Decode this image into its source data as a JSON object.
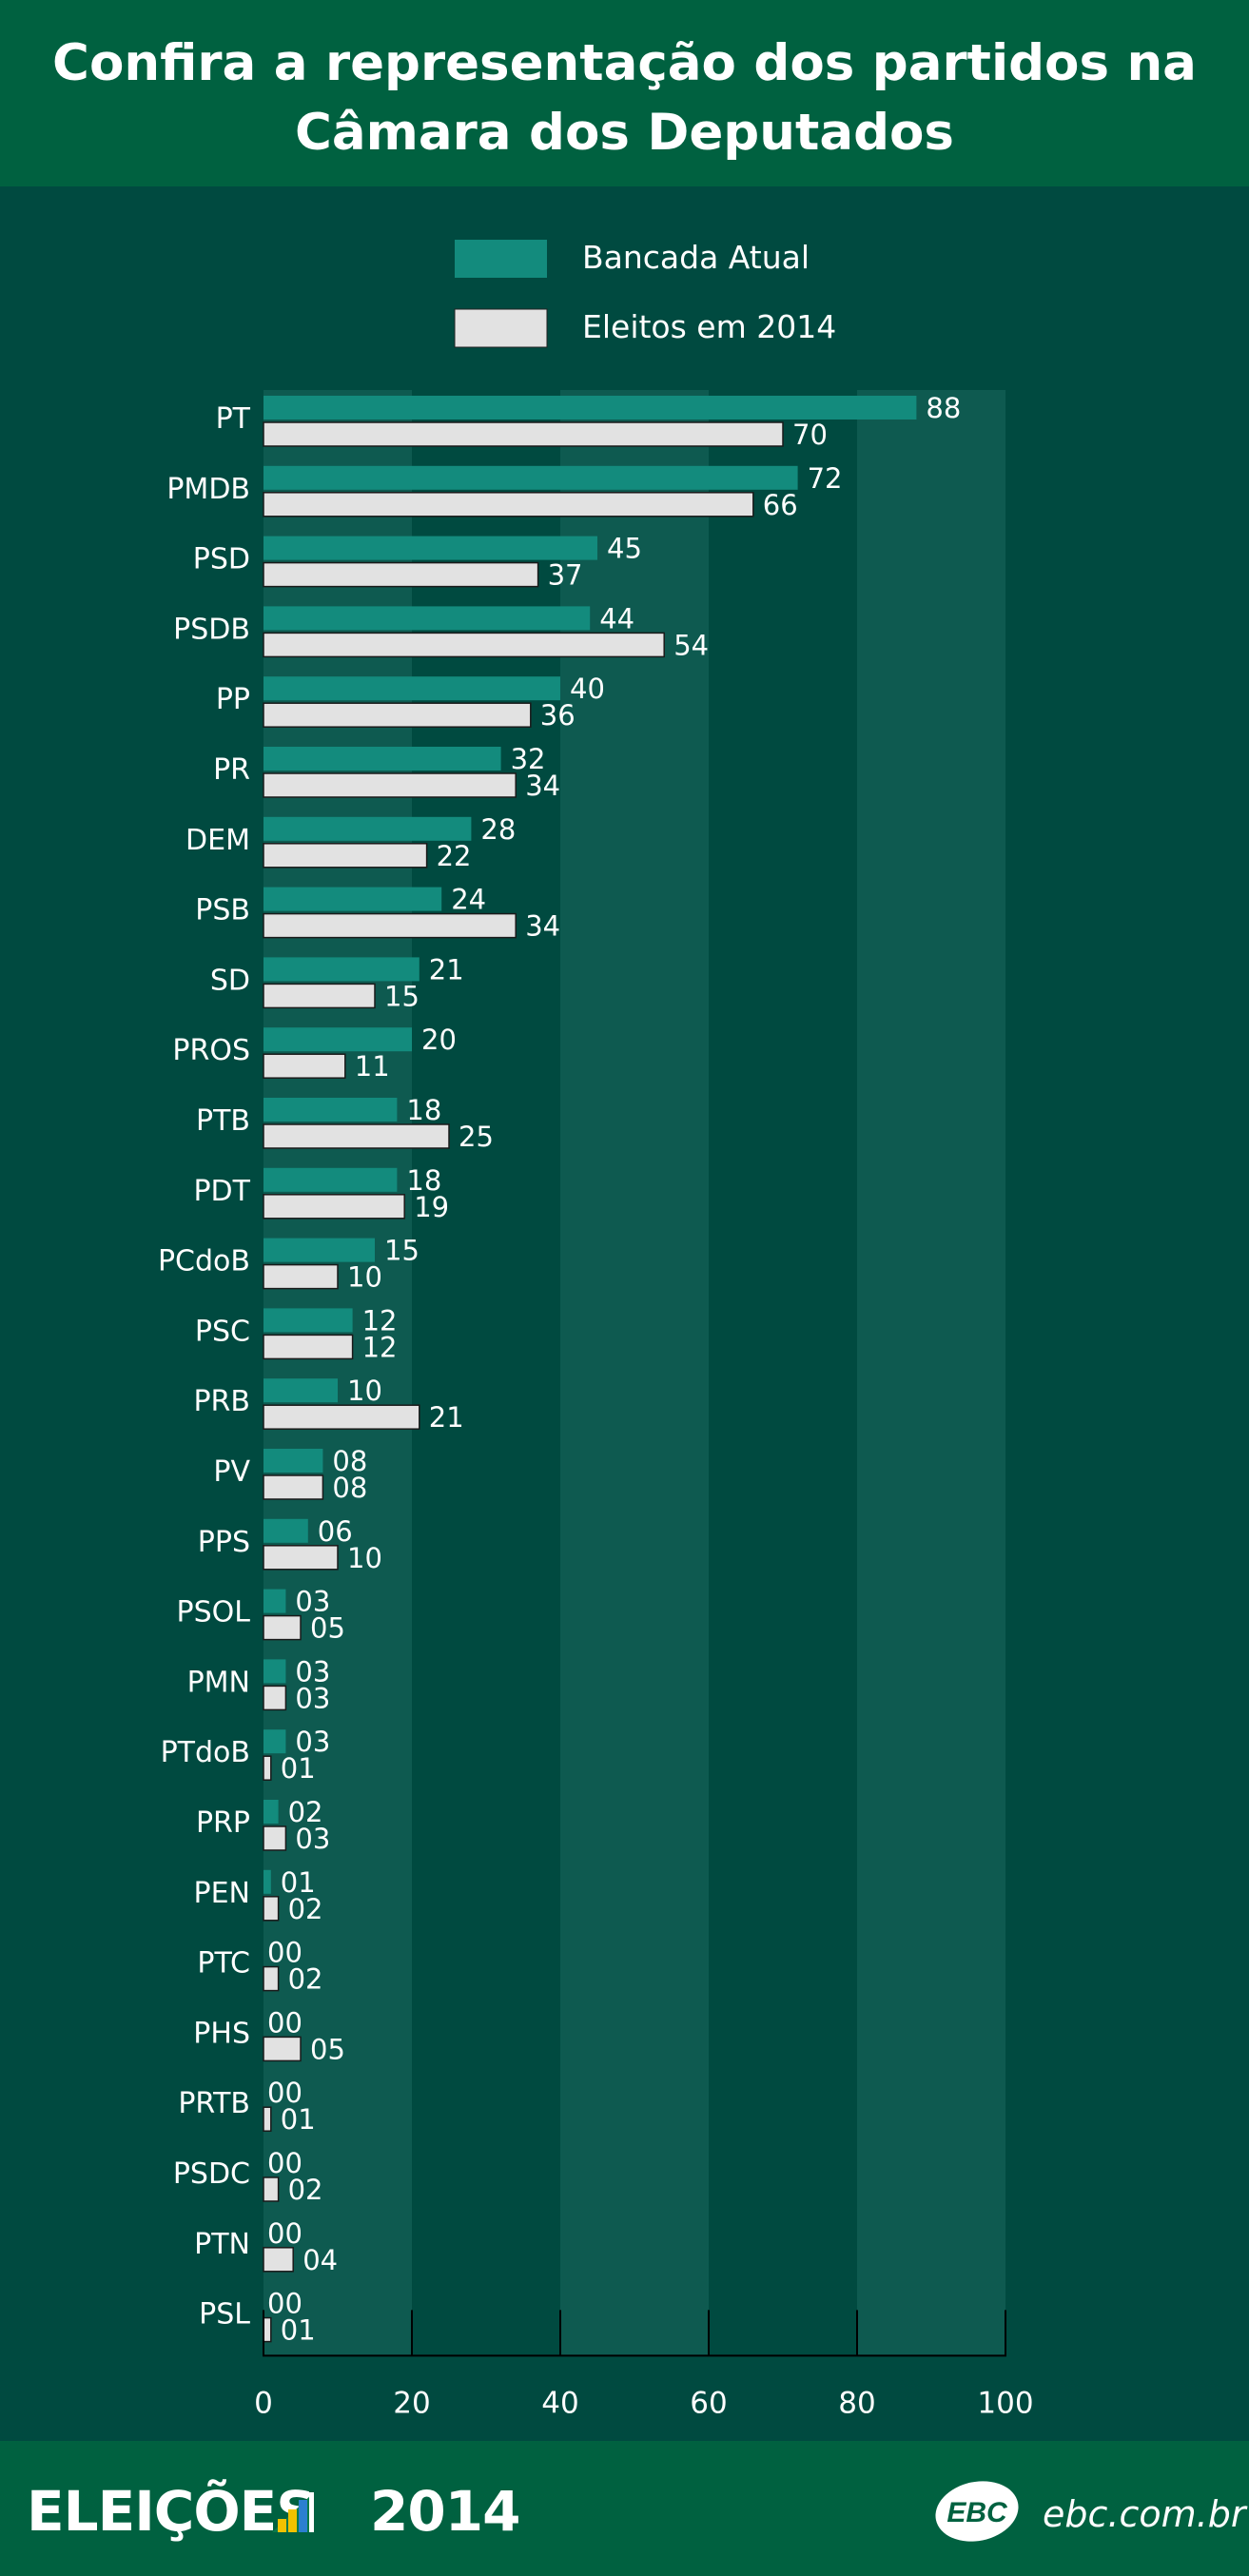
{
  "header": {
    "title": "Confira a representação dos partidos na Câmara dos Deputados"
  },
  "footer": {
    "brand": "ELEIÇÕES",
    "year": "2014",
    "logo": "EBC",
    "site": "ebc.com.br"
  },
  "colors": {
    "background": "#004a40",
    "header": "#006140",
    "current": "#138b7d",
    "elected": "#e2e2e2",
    "band": "#0e5a50"
  },
  "chart_data": {
    "type": "bar",
    "orientation": "horizontal",
    "title": "Confira a representação dos partidos na Câmara dos Deputados",
    "categories": [
      "PT",
      "PMDB",
      "PSD",
      "PSDB",
      "PP",
      "PR",
      "DEM",
      "PSB",
      "SD",
      "PROS",
      "PTB",
      "PDT",
      "PCdoB",
      "PSC",
      "PRB",
      "PV",
      "PPS",
      "PSOL",
      "PMN",
      "PTdoB",
      "PRP",
      "PEN",
      "PTC",
      "PHS",
      "PRTB",
      "PSDC",
      "PTN",
      "PSL"
    ],
    "series": [
      {
        "name": "Bancada Atual",
        "values": [
          88,
          72,
          45,
          44,
          40,
          32,
          28,
          24,
          21,
          20,
          18,
          18,
          15,
          12,
          10,
          8,
          6,
          3,
          3,
          3,
          2,
          1,
          0,
          0,
          0,
          0,
          0,
          0
        ],
        "labels": [
          "88",
          "72",
          "45",
          "44",
          "40",
          "32",
          "28",
          "24",
          "21",
          "20",
          "18",
          "18",
          "15",
          "12",
          "10",
          "08",
          "06",
          "03",
          "03",
          "03",
          "02",
          "01",
          "00",
          "00",
          "00",
          "00",
          "00",
          "00"
        ]
      },
      {
        "name": "Eleitos em 2014",
        "values": [
          70,
          66,
          37,
          54,
          36,
          34,
          22,
          34,
          15,
          11,
          25,
          19,
          10,
          12,
          21,
          8,
          10,
          5,
          3,
          1,
          3,
          2,
          2,
          5,
          1,
          2,
          4,
          1
        ],
        "labels": [
          "70",
          "66",
          "37",
          "54",
          "36",
          "34",
          "22",
          "34",
          "15",
          "11",
          "25",
          "19",
          "10",
          "12",
          "21",
          "08",
          "10",
          "05",
          "03",
          "01",
          "03",
          "02",
          "02",
          "05",
          "01",
          "02",
          "04",
          "01"
        ]
      }
    ],
    "xlim": [
      0,
      100
    ],
    "xticks": [
      "0",
      "20",
      "40",
      "60",
      "80",
      "100"
    ],
    "legend": "top-center",
    "grid": "alternating vertical bands"
  }
}
